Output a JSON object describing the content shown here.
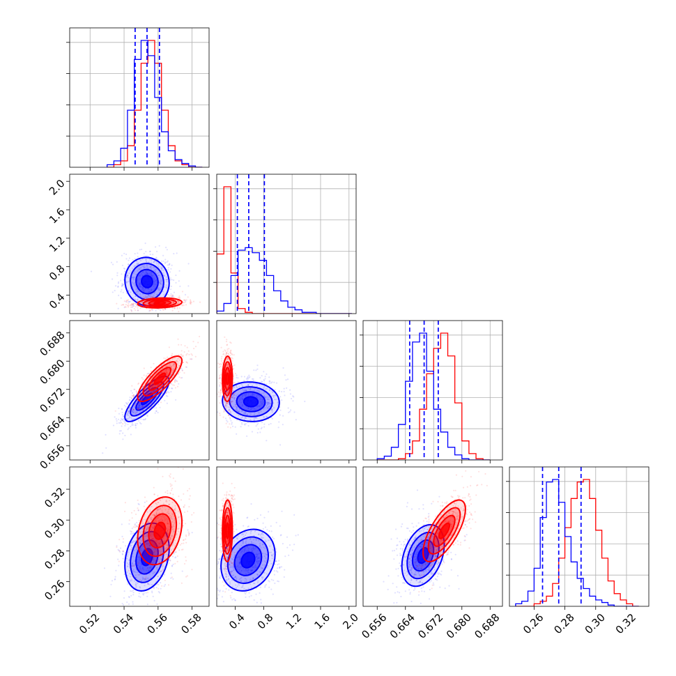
{
  "chart_data": {
    "type": "corner",
    "grid": true,
    "colors": {
      "blue": "#0000ff",
      "red": "#ff0000"
    },
    "params": [
      {
        "range": [
          0.508,
          0.59
        ],
        "ticks": [
          "0.52",
          "0.54",
          "0.56",
          "0.58"
        ],
        "tick_values": [
          0.52,
          0.54,
          0.56,
          0.58
        ]
      },
      {
        "range": [
          0.14,
          2.1
        ],
        "ticks": [
          "0.4",
          "0.8",
          "1.2",
          "1.6",
          "2.0"
        ],
        "tick_values": [
          0.4,
          0.8,
          1.2,
          1.6,
          2.0
        ]
      },
      {
        "range": [
          0.652,
          0.6915
        ],
        "ticks": [
          "0.656",
          "0.664",
          "0.672",
          "0.680",
          "0.688"
        ],
        "tick_values": [
          0.656,
          0.664,
          0.672,
          0.68,
          0.688
        ]
      },
      {
        "range": [
          0.244,
          0.3345
        ],
        "ticks": [
          "0.26",
          "0.28",
          "0.30",
          "0.32"
        ],
        "tick_values": [
          0.26,
          0.28,
          0.3,
          0.32
        ]
      }
    ],
    "diagonal": [
      {
        "edges": [
          0.53,
          0.534,
          0.538,
          0.542,
          0.546,
          0.55,
          0.554,
          0.558,
          0.562,
          0.566,
          0.57,
          0.574,
          0.578,
          0.582,
          0.586
        ],
        "blue": [
          2,
          5,
          15,
          45,
          85,
          100,
          88,
          55,
          28,
          13,
          6,
          3,
          1,
          0
        ],
        "red": [
          0,
          2,
          5,
          17,
          45,
          82,
          100,
          82,
          45,
          17,
          5,
          2,
          0,
          0
        ],
        "quantiles": [
          0.5465,
          0.5535,
          0.5608
        ]
      },
      {
        "edges": [
          0.14,
          0.24,
          0.34,
          0.44,
          0.54,
          0.64,
          0.74,
          0.84,
          0.94,
          1.04,
          1.14,
          1.24,
          1.34,
          1.44,
          1.54,
          1.64,
          1.74,
          1.84,
          1.94,
          2.04
        ],
        "blue": [
          2,
          8,
          30,
          50,
          52,
          48,
          42,
          30,
          18,
          10,
          5,
          3,
          1,
          1,
          0,
          0,
          0,
          0,
          0
        ],
        "red": [
          47,
          100,
          32,
          4,
          1,
          0,
          0,
          0,
          0,
          0,
          0,
          0,
          0,
          0,
          0,
          0,
          0,
          0,
          0
        ],
        "quantiles": [
          0.43,
          0.59,
          0.81
        ]
      },
      {
        "edges": [
          0.656,
          0.658,
          0.66,
          0.662,
          0.664,
          0.666,
          0.668,
          0.67,
          0.672,
          0.674,
          0.676,
          0.678,
          0.68,
          0.682,
          0.684,
          0.686,
          0.688
        ],
        "blue": [
          1,
          3,
          10,
          28,
          62,
          93,
          100,
          70,
          40,
          22,
          10,
          4,
          1,
          0,
          0,
          0
        ],
        "red": [
          0,
          0,
          0,
          1,
          5,
          15,
          40,
          68,
          88,
          100,
          82,
          45,
          15,
          5,
          1,
          0
        ],
        "quantiles": [
          0.6652,
          0.6693,
          0.6733
        ]
      },
      {
        "edges": [
          0.248,
          0.252,
          0.256,
          0.26,
          0.264,
          0.268,
          0.272,
          0.276,
          0.28,
          0.284,
          0.288,
          0.292,
          0.296,
          0.3,
          0.304,
          0.308,
          0.312,
          0.316,
          0.32,
          0.324,
          0.328
        ],
        "blue": [
          2,
          4,
          12,
          30,
          70,
          98,
          100,
          82,
          55,
          35,
          22,
          14,
          8,
          5,
          3,
          1,
          0,
          0,
          0,
          0
        ],
        "red": [
          0,
          0,
          0,
          2,
          4,
          8,
          18,
          38,
          62,
          85,
          98,
          100,
          85,
          60,
          38,
          20,
          10,
          5,
          2,
          0
        ],
        "quantiles": [
          0.2655,
          0.276,
          0.2905
        ]
      }
    ],
    "pairs": [
      {
        "row": 1,
        "col": 0,
        "blue": {
          "mean": [
            0.5535,
            0.59
          ],
          "sd": [
            0.0065,
            0.17
          ],
          "rho": -0.05
        },
        "red": {
          "mean": [
            0.561,
            0.29
          ],
          "sd": [
            0.0065,
            0.035
          ],
          "rho": 0.15
        }
      },
      {
        "row": 2,
        "col": 0,
        "blue": {
          "mean": [
            0.5535,
            0.6693
          ],
          "sd": [
            0.0065,
            0.0032
          ],
          "rho": 0.8
        },
        "red": {
          "mean": [
            0.561,
            0.675
          ],
          "sd": [
            0.0065,
            0.0032
          ],
          "rho": 0.8
        }
      },
      {
        "row": 2,
        "col": 1,
        "blue": {
          "mean": [
            0.62,
            0.6685
          ],
          "sd": [
            0.2,
            0.0028
          ],
          "rho": -0.05
        },
        "red": {
          "mean": [
            0.29,
            0.675
          ],
          "sd": [
            0.035,
            0.0032
          ],
          "rho": 0.05
        }
      },
      {
        "row": 3,
        "col": 0,
        "blue": {
          "mean": [
            0.5535,
            0.276
          ],
          "sd": [
            0.0065,
            0.011
          ],
          "rho": 0.25
        },
        "red": {
          "mean": [
            0.561,
            0.293
          ],
          "sd": [
            0.0065,
            0.011
          ],
          "rho": 0.25
        }
      },
      {
        "row": 3,
        "col": 1,
        "blue": {
          "mean": [
            0.58,
            0.274
          ],
          "sd": [
            0.19,
            0.01
          ],
          "rho": 0.2
        },
        "red": {
          "mean": [
            0.29,
            0.293
          ],
          "sd": [
            0.035,
            0.01
          ],
          "rho": 0.05
        }
      },
      {
        "row": 3,
        "col": 2,
        "blue": {
          "mean": [
            0.669,
            0.277
          ],
          "sd": [
            0.003,
            0.01
          ],
          "rho": 0.35
        },
        "red": {
          "mean": [
            0.675,
            0.293
          ],
          "sd": [
            0.003,
            0.01
          ],
          "rho": 0.7
        }
      }
    ]
  }
}
